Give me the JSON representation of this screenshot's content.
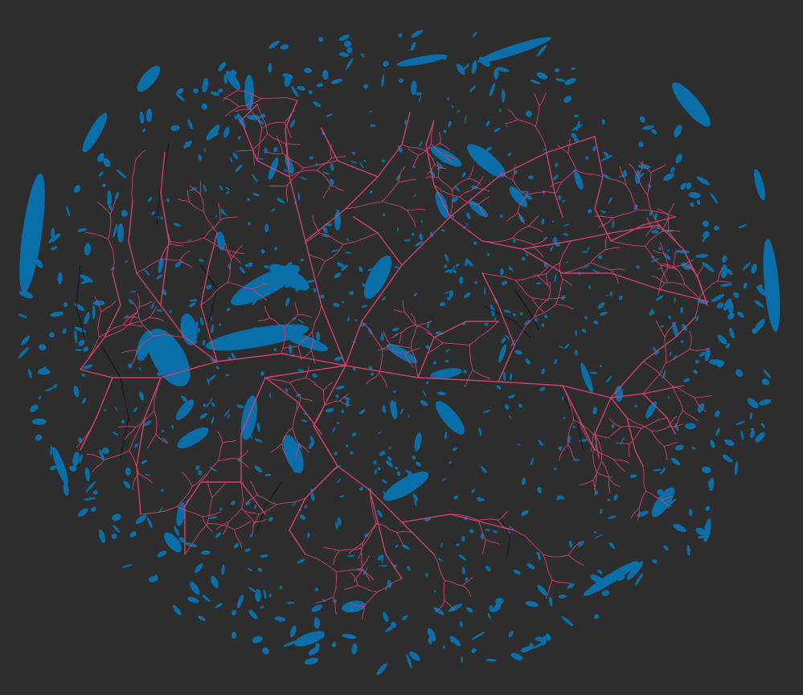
{
  "image": {
    "kind": "segmentation-overlay",
    "background_color": "#2d2d2d",
    "blob_color": "#0a6fa8",
    "vessel_color": "#d0436e",
    "dark_vessel_color": "#101a28",
    "legend": []
  }
}
